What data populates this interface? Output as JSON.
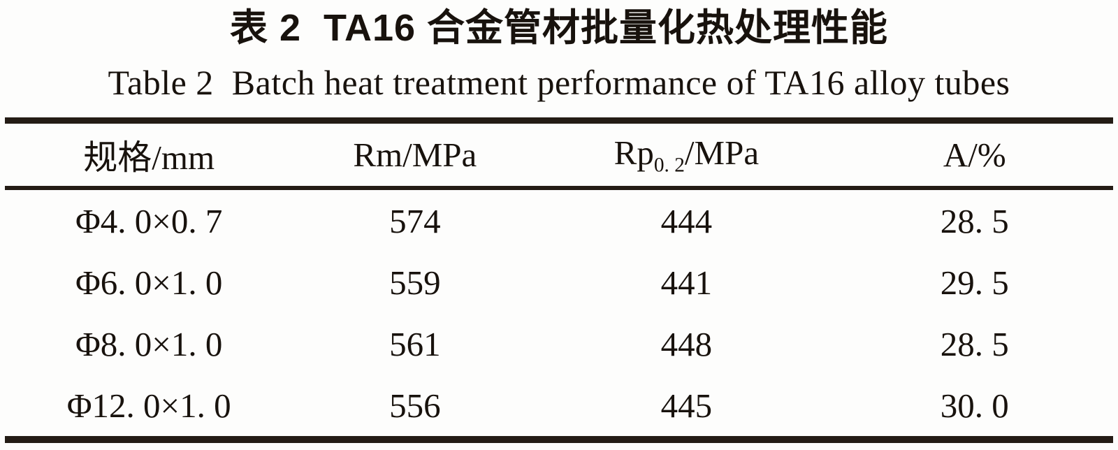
{
  "figure": {
    "title_zh": "表 2  TA16 合金管材批量化热处理性能",
    "title_en": "Table 2  Batch heat treatment performance of TA16 alloy tubes"
  },
  "table": {
    "headers": [
      {
        "main": "规格/mm"
      },
      {
        "main": "Rm/MPa"
      },
      {
        "main": "Rp",
        "sub": "0. 2",
        "post": "/MPa"
      },
      {
        "main": "A/%"
      }
    ],
    "rows": [
      [
        "Φ4. 0×0. 7",
        "574",
        "444",
        "28. 5"
      ],
      [
        "Φ6. 0×1. 0",
        "559",
        "441",
        "29. 5"
      ],
      [
        "Φ8. 0×1. 0",
        "561",
        "448",
        "28. 5"
      ],
      [
        "Φ12. 0×1. 0",
        "556",
        "445",
        "30. 0"
      ]
    ]
  },
  "chart_data": {
    "type": "table",
    "title": "Table 2  Batch heat treatment performance of TA16 alloy tubes",
    "columns": [
      "规格/mm",
      "Rm/MPa",
      "Rp0.2/MPa",
      "A/%"
    ],
    "rows": [
      [
        "Φ4.0×0.7",
        574,
        444,
        28.5
      ],
      [
        "Φ6.0×1.0",
        559,
        441,
        29.5
      ],
      [
        "Φ8.0×1.0",
        561,
        448,
        28.5
      ],
      [
        "Φ12.0×1.0",
        556,
        445,
        30.0
      ]
    ]
  },
  "colors": {
    "rule": "#241c15",
    "text": "#18120d",
    "background": "#fdfdfc"
  }
}
